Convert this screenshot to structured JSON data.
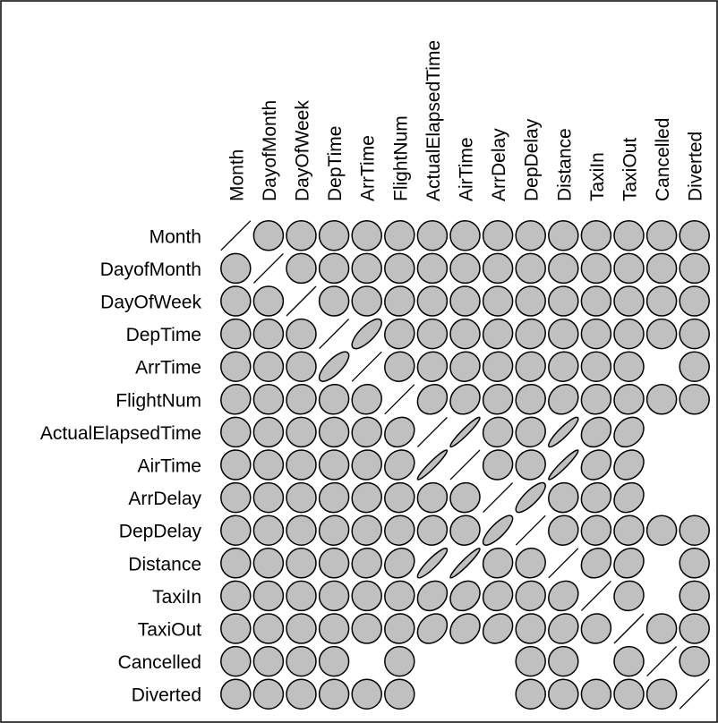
{
  "chart_data": {
    "type": "correlation-ellipse-matrix",
    "variables": [
      "Month",
      "DayofMonth",
      "DayOfWeek",
      "DepTime",
      "ArrTime",
      "FlightNum",
      "ActualElapsedTime",
      "AirTime",
      "ArrDelay",
      "DepDelay",
      "Distance",
      "TaxiIn",
      "TaxiOut",
      "Cancelled",
      "Diverted"
    ],
    "fill_color": "#c0c0c0",
    "stroke_color": "#000000",
    "correlations": [
      [
        1,
        0,
        0,
        0,
        0,
        0.05,
        0,
        0,
        0,
        0,
        0,
        0,
        0,
        0,
        0
      ],
      [
        0,
        1,
        0,
        0,
        0,
        0,
        0,
        0,
        0,
        0,
        0,
        0,
        0,
        0,
        0
      ],
      [
        0,
        0,
        1,
        0,
        0,
        0.05,
        0,
        0,
        0,
        0,
        0,
        0,
        0,
        0,
        0
      ],
      [
        0,
        0,
        0,
        1,
        0.75,
        0.05,
        0,
        0,
        0.05,
        0.05,
        0,
        0,
        0,
        0,
        0
      ],
      [
        0,
        0,
        0,
        0.75,
        1,
        0.05,
        0.05,
        0.05,
        0.05,
        0.05,
        0.05,
        0,
        0,
        null,
        0
      ],
      [
        0.05,
        0,
        0.05,
        0.05,
        0.05,
        1,
        0.15,
        0.15,
        0.05,
        0.05,
        0.15,
        0.05,
        0.05,
        0,
        0
      ],
      [
        0,
        0,
        0,
        0,
        0.05,
        0.15,
        1,
        0.95,
        0.05,
        0.05,
        0.9,
        0.2,
        0.25,
        null,
        null
      ],
      [
        0,
        0,
        0,
        0,
        0.05,
        0.15,
        0.95,
        1,
        0.05,
        0.05,
        0.95,
        0.2,
        0.2,
        null,
        null
      ],
      [
        0,
        0,
        0,
        0.05,
        0.05,
        0.05,
        0.05,
        0.05,
        1,
        0.8,
        0.05,
        0.1,
        0.2,
        null,
        null
      ],
      [
        0,
        0,
        0,
        0.05,
        0.05,
        0.05,
        0.05,
        0.05,
        0.8,
        1,
        0.05,
        0.05,
        0.05,
        0,
        0
      ],
      [
        0,
        0,
        0,
        0,
        0.05,
        0.15,
        0.9,
        0.95,
        0.05,
        0.05,
        1,
        0.15,
        0.15,
        null,
        0
      ],
      [
        0,
        0,
        0,
        0,
        0,
        0.05,
        0.2,
        0.2,
        0.1,
        0.05,
        0.15,
        1,
        0.05,
        null,
        0
      ],
      [
        0,
        0,
        0,
        0,
        0,
        0.05,
        0.25,
        0.2,
        0.2,
        0.05,
        0.15,
        0.05,
        1,
        0,
        0
      ],
      [
        0,
        0,
        0,
        0,
        null,
        0,
        null,
        null,
        null,
        0,
        0,
        null,
        0,
        1,
        0
      ],
      [
        0,
        0,
        0,
        0,
        0,
        0,
        null,
        null,
        null,
        0,
        0,
        0,
        0,
        0,
        1
      ]
    ]
  }
}
